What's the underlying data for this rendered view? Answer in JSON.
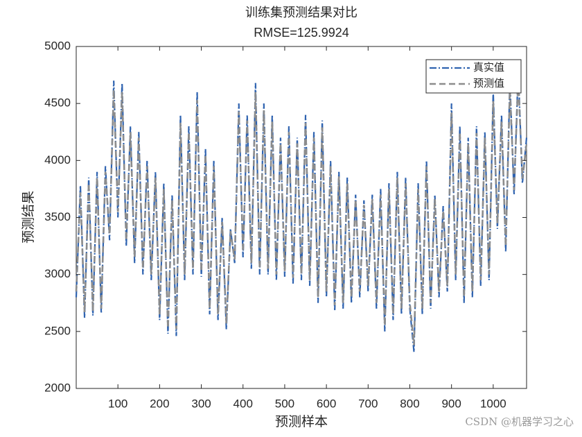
{
  "chart_data": {
    "type": "line",
    "title": "训练集预测结果对比",
    "subtitle": "RMSE=125.9924",
    "x_label": "预测样本",
    "y_label": "预测结果",
    "watermark": "CSDN @机器学习之心",
    "legend_position": "upper right",
    "grid": false,
    "xlim": [
      0,
      1080
    ],
    "ylim": [
      2000,
      5000
    ],
    "xticks": [
      100,
      200,
      300,
      400,
      500,
      600,
      700,
      800,
      900,
      1000
    ],
    "yticks": [
      2000,
      2500,
      3000,
      3500,
      4000,
      4500,
      5000
    ],
    "x": [
      0,
      10,
      20,
      30,
      40,
      50,
      60,
      70,
      80,
      90,
      100,
      110,
      120,
      130,
      140,
      150,
      160,
      170,
      180,
      190,
      200,
      210,
      220,
      230,
      240,
      250,
      260,
      270,
      280,
      290,
      300,
      310,
      320,
      330,
      340,
      350,
      360,
      370,
      380,
      390,
      400,
      410,
      420,
      430,
      440,
      450,
      460,
      470,
      480,
      490,
      500,
      510,
      520,
      530,
      540,
      550,
      560,
      570,
      580,
      590,
      600,
      610,
      620,
      630,
      640,
      650,
      660,
      670,
      680,
      690,
      700,
      710,
      720,
      730,
      740,
      750,
      760,
      770,
      780,
      790,
      800,
      810,
      820,
      830,
      840,
      850,
      860,
      870,
      880,
      890,
      900,
      910,
      920,
      930,
      940,
      950,
      960,
      970,
      980,
      990,
      1000,
      1010,
      1020,
      1030,
      1040,
      1050,
      1060,
      1070,
      1080
    ],
    "series": [
      {
        "name": "真实值",
        "color": "#2f63b0",
        "dash": "10 3 2 3",
        "values": [
          2800,
          3780,
          2620,
          3850,
          2640,
          3900,
          2660,
          3950,
          3300,
          4700,
          3500,
          4680,
          3250,
          4300,
          3100,
          4250,
          3000,
          4000,
          2950,
          3900,
          2600,
          3800,
          2480,
          3700,
          2460,
          4400,
          2950,
          4300,
          3000,
          4600,
          2980,
          4100,
          2650,
          4000,
          2600,
          3500,
          2520,
          3400,
          3100,
          4500,
          3150,
          4400,
          3050,
          4680,
          3000,
          4500,
          3000,
          4400,
          2950,
          4200,
          2980,
          4300,
          2920,
          4200,
          2950,
          4400,
          2900,
          4250,
          2750,
          4350,
          2800,
          4000,
          2680,
          3900,
          2700,
          3850,
          2750,
          3700,
          2800,
          3650,
          2850,
          3700,
          2700,
          3750,
          2500,
          3800,
          2600,
          3900,
          2650,
          3850,
          2700,
          2320,
          3800,
          2650,
          4000,
          2700,
          3700,
          2800,
          3600,
          2850,
          4500,
          2950,
          4300,
          2750,
          4200,
          2800,
          4300,
          2900,
          4250,
          2950,
          4600,
          3400,
          4400,
          3200,
          4700,
          3700,
          4800,
          3800,
          4200
        ]
      },
      {
        "name": "预测值",
        "color": "#8c8c8c",
        "dash": "9 5",
        "values": [
          2850,
          3720,
          2670,
          3800,
          2680,
          3850,
          2700,
          3900,
          3350,
          4620,
          3550,
          4600,
          3300,
          4250,
          3150,
          4200,
          3050,
          3950,
          3000,
          3850,
          2650,
          3750,
          2530,
          3650,
          2520,
          4330,
          3000,
          4250,
          3050,
          4530,
          3030,
          4050,
          2700,
          3950,
          2650,
          3460,
          2570,
          3380,
          3130,
          4430,
          3200,
          4350,
          3100,
          4600,
          3050,
          4440,
          3050,
          4340,
          3000,
          4150,
          3030,
          4250,
          2970,
          4150,
          3000,
          4330,
          2950,
          4200,
          2800,
          4290,
          2850,
          3950,
          2730,
          3860,
          2750,
          3800,
          2800,
          3660,
          2850,
          3610,
          2900,
          3660,
          2750,
          3700,
          2550,
          3750,
          2650,
          3850,
          2700,
          3800,
          2750,
          2380,
          3750,
          2700,
          3950,
          2750,
          3660,
          2850,
          3560,
          2900,
          4420,
          3000,
          4250,
          2800,
          4150,
          2850,
          4240,
          2950,
          4200,
          3000,
          4520,
          3450,
          4340,
          3250,
          4620,
          3740,
          4720,
          3840,
          4150
        ]
      }
    ]
  }
}
